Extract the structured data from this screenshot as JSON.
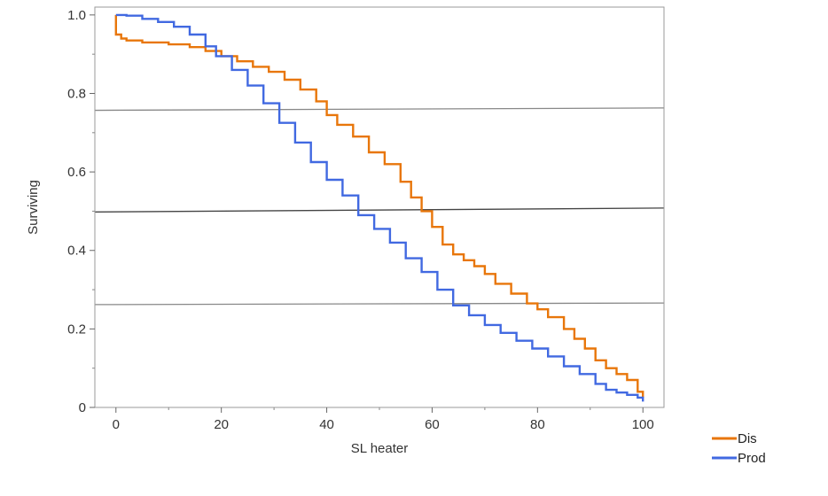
{
  "chart_data": {
    "type": "line",
    "step": true,
    "title": "",
    "xlabel": "SL heater",
    "ylabel": "Surviving",
    "xlim": [
      -4,
      104
    ],
    "ylim": [
      0,
      1.02
    ],
    "xticks": [
      0,
      20,
      40,
      60,
      80,
      100
    ],
    "xtick_labels": [
      "0",
      "20",
      "40",
      "60",
      "80",
      "100"
    ],
    "yticks": [
      0,
      0.2,
      0.4,
      0.6,
      0.8,
      1.0
    ],
    "ytick_labels": [
      "0",
      "0.2",
      "0.4",
      "0.6",
      "0.8",
      "1.0"
    ],
    "grid": false,
    "legend_position": "bottom-right outside",
    "reference_lines": [
      {
        "y_left": 0.757,
        "y_right": 0.763,
        "color": "#888888"
      },
      {
        "y_left": 0.498,
        "y_right": 0.508,
        "color": "#444444"
      },
      {
        "y_left": 0.262,
        "y_right": 0.266,
        "color": "#888888"
      }
    ],
    "series": [
      {
        "name": "Dis",
        "color": "#E8760A",
        "x": [
          0,
          0,
          1,
          2,
          5,
          10,
          14,
          17,
          20,
          23,
          26,
          29,
          32,
          35,
          38,
          40,
          42,
          45,
          48,
          51,
          54,
          56,
          58,
          60,
          62,
          64,
          66,
          68,
          70,
          72,
          75,
          78,
          80,
          82,
          85,
          87,
          89,
          91,
          93,
          95,
          97,
          99,
          100
        ],
        "y": [
          1.0,
          0.95,
          0.94,
          0.935,
          0.93,
          0.925,
          0.918,
          0.908,
          0.895,
          0.882,
          0.868,
          0.855,
          0.835,
          0.81,
          0.78,
          0.745,
          0.72,
          0.69,
          0.65,
          0.62,
          0.575,
          0.535,
          0.5,
          0.46,
          0.415,
          0.39,
          0.375,
          0.36,
          0.34,
          0.315,
          0.29,
          0.265,
          0.25,
          0.23,
          0.2,
          0.175,
          0.15,
          0.12,
          0.1,
          0.085,
          0.07,
          0.04,
          0.025
        ]
      },
      {
        "name": "Prod",
        "color": "#4169E1",
        "x": [
          0,
          2,
          5,
          8,
          11,
          14,
          17,
          19,
          22,
          25,
          28,
          31,
          34,
          37,
          40,
          43,
          46,
          49,
          52,
          55,
          58,
          61,
          64,
          67,
          70,
          73,
          76,
          79,
          82,
          85,
          88,
          91,
          93,
          95,
          97,
          99,
          100
        ],
        "y": [
          1.0,
          0.998,
          0.99,
          0.982,
          0.97,
          0.95,
          0.92,
          0.895,
          0.86,
          0.82,
          0.775,
          0.725,
          0.675,
          0.625,
          0.58,
          0.54,
          0.49,
          0.455,
          0.42,
          0.38,
          0.345,
          0.3,
          0.26,
          0.235,
          0.21,
          0.19,
          0.17,
          0.15,
          0.13,
          0.105,
          0.085,
          0.06,
          0.045,
          0.038,
          0.032,
          0.025,
          0.015
        ]
      }
    ]
  }
}
